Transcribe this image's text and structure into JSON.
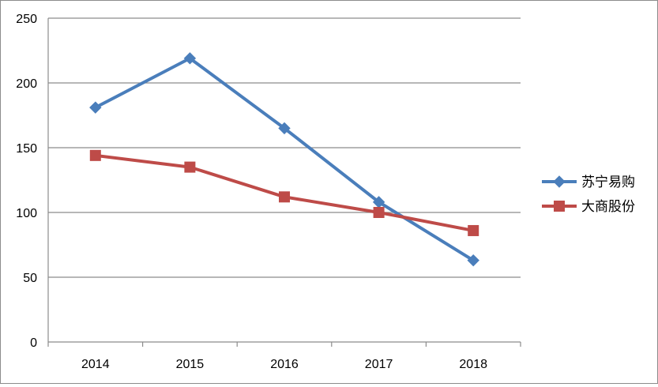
{
  "chart_data": {
    "type": "line",
    "title": "",
    "xlabel": "",
    "ylabel": "",
    "categories": [
      "2014",
      "2015",
      "2016",
      "2017",
      "2018"
    ],
    "ylim": [
      0,
      250
    ],
    "yticks": [
      0,
      50,
      100,
      150,
      200,
      250
    ],
    "grid": true,
    "legend_position": "right",
    "series": [
      {
        "name": "苏宁易购",
        "values": [
          181,
          219,
          165,
          108,
          63
        ],
        "color": "#4a7ebb",
        "marker": "diamond"
      },
      {
        "name": "大商股份",
        "values": [
          144,
          135,
          112,
          100,
          86
        ],
        "color": "#be4b48",
        "marker": "square"
      }
    ]
  }
}
